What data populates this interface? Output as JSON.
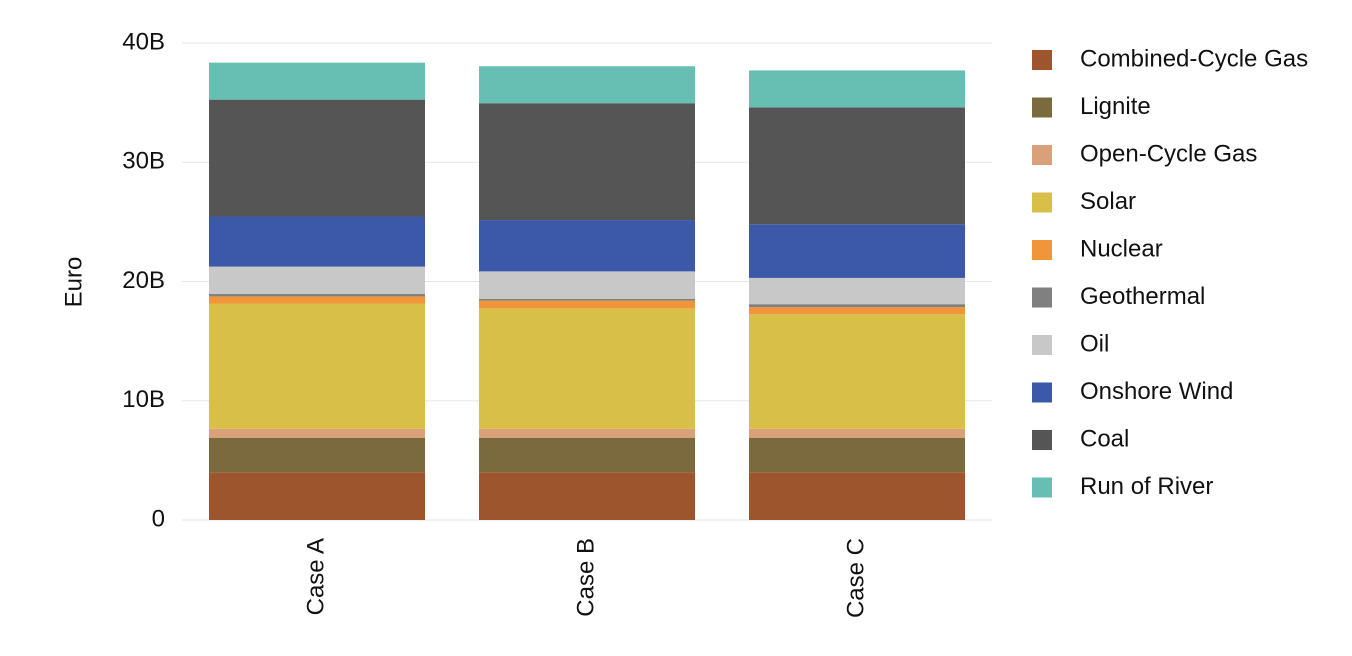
{
  "chart_data": {
    "type": "stacked_bar",
    "y_label": "Euro",
    "categories": [
      "Case A",
      "Case B",
      "Case C"
    ],
    "series": [
      {
        "name": "Combined-Cycle Gas",
        "color": "#9c552c",
        "values": [
          4000000000,
          4000000000,
          4000000000
        ]
      },
      {
        "name": "Lignite",
        "color": "#7b6a3e",
        "values": [
          2900000000,
          2900000000,
          2900000000
        ]
      },
      {
        "name": "Open-Cycle Gas",
        "color": "#d9a07a",
        "values": [
          750000000,
          750000000,
          750000000
        ]
      },
      {
        "name": "Solar",
        "color": "#d8bf47",
        "values": [
          10500000000,
          10100000000,
          9600000000
        ]
      },
      {
        "name": "Nuclear",
        "color": "#f0953a",
        "values": [
          600000000,
          650000000,
          600000000
        ]
      },
      {
        "name": "Geothermal",
        "color": "#808080",
        "values": [
          200000000,
          150000000,
          250000000
        ]
      },
      {
        "name": "Oil",
        "color": "#c8c8c8",
        "values": [
          2300000000,
          2300000000,
          2200000000
        ]
      },
      {
        "name": "Onshore Wind",
        "color": "#3c58a8",
        "values": [
          4200000000,
          4300000000,
          4500000000
        ]
      },
      {
        "name": "Coal",
        "color": "#555555",
        "values": [
          9800000000,
          9800000000,
          9800000000
        ]
      },
      {
        "name": "Run of River",
        "color": "#66bfb2",
        "values": [
          3100000000,
          3100000000,
          3100000000
        ]
      }
    ],
    "ylim": [
      0,
      40000000000
    ],
    "yticks": [
      0,
      {
        "value": 10000000000,
        "label": "10B"
      },
      {
        "value": 20000000000,
        "label": "20B"
      },
      {
        "value": 30000000000,
        "label": "30B"
      },
      {
        "value": 40000000000,
        "label": "40B"
      }
    ],
    "grid": true,
    "legend": "right"
  }
}
